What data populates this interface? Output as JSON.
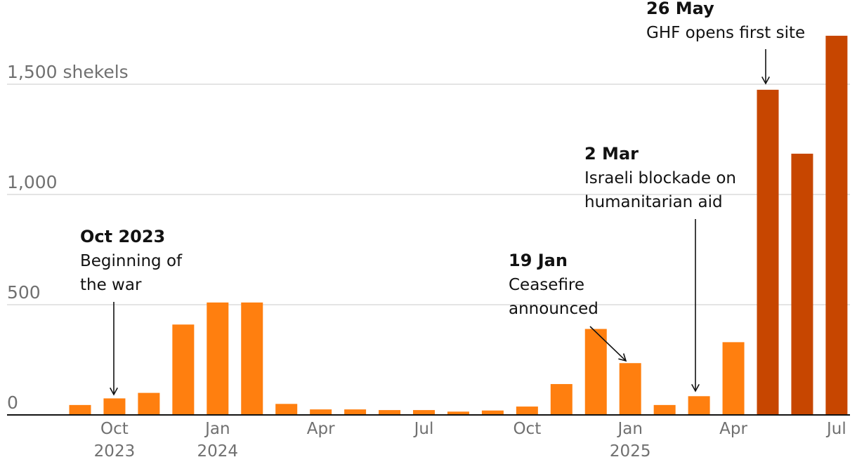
{
  "chart_data": {
    "type": "bar",
    "title": "",
    "xlabel": "",
    "ylabel": "shekels",
    "ylim": [
      0,
      1700
    ],
    "y_ticks": [
      {
        "value": 0,
        "label": "0"
      },
      {
        "value": 500,
        "label": "500"
      },
      {
        "value": 1000,
        "label": "1,000"
      },
      {
        "value": 1500,
        "label": "1,500 shekels"
      }
    ],
    "categories": [
      "Sep 2023",
      "Oct 2023",
      "Nov 2023",
      "Dec 2023",
      "Jan 2024",
      "Feb 2024",
      "Mar 2024",
      "Apr 2024",
      "May 2024",
      "Jun 2024",
      "Jul 2024",
      "Aug 2024",
      "Sep 2024",
      "Oct 2024",
      "Nov 2024",
      "Dec 2024",
      "Jan 2025",
      "Feb 2025",
      "Mar 2025",
      "Apr 2025",
      "May 2025",
      "Jun 2025",
      "Jul 2025"
    ],
    "values": [
      45,
      75,
      100,
      410,
      510,
      510,
      50,
      25,
      25,
      22,
      22,
      15,
      20,
      38,
      140,
      390,
      235,
      45,
      85,
      330,
      1475,
      1185,
      1720
    ],
    "colors": [
      "#ff7f0f",
      "#ff7f0f",
      "#ff7f0f",
      "#ff7f0f",
      "#ff7f0f",
      "#ff7f0f",
      "#ff7f0f",
      "#ff7f0f",
      "#ff7f0f",
      "#ff7f0f",
      "#ff7f0f",
      "#ff7f0f",
      "#ff7f0f",
      "#ff7f0f",
      "#ff7f0f",
      "#ff7f0f",
      "#ff7f0f",
      "#ff7f0f",
      "#ff7f0f",
      "#ff7f0f",
      "#c74600",
      "#c74600",
      "#c74600"
    ],
    "x_ticks": [
      {
        "index": 1,
        "label": "Oct",
        "year": "2023"
      },
      {
        "index": 4,
        "label": "Jan",
        "year": "2024"
      },
      {
        "index": 7,
        "label": "Apr",
        "year": ""
      },
      {
        "index": 10,
        "label": "Jul",
        "year": ""
      },
      {
        "index": 13,
        "label": "Oct",
        "year": ""
      },
      {
        "index": 16,
        "label": "Jan",
        "year": "2025"
      },
      {
        "index": 19,
        "label": "Apr",
        "year": ""
      },
      {
        "index": 22,
        "label": "Jul",
        "year": ""
      }
    ],
    "annotations": [
      {
        "index": 1,
        "title": "Oct 2023",
        "lines": [
          "Beginning of",
          "the war"
        ]
      },
      {
        "index": 16,
        "title": "19 Jan",
        "lines": [
          "Ceasefire",
          "announced"
        ]
      },
      {
        "index": 18,
        "title": "2 Mar",
        "lines": [
          "Israeli blockade on",
          "humanitarian aid"
        ]
      },
      {
        "index": 20,
        "title": "26 May",
        "lines": [
          "GHF opens first site"
        ]
      }
    ]
  }
}
